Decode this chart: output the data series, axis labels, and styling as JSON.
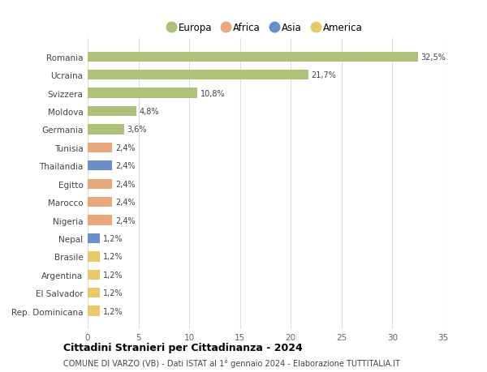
{
  "countries": [
    "Romania",
    "Ucraina",
    "Svizzera",
    "Moldova",
    "Germania",
    "Tunisia",
    "Thailandia",
    "Egitto",
    "Marocco",
    "Nigeria",
    "Nepal",
    "Brasile",
    "Argentina",
    "El Salvador",
    "Rep. Dominicana"
  ],
  "values": [
    32.5,
    21.7,
    10.8,
    4.8,
    3.6,
    2.4,
    2.4,
    2.4,
    2.4,
    2.4,
    1.2,
    1.2,
    1.2,
    1.2,
    1.2
  ],
  "labels": [
    "32,5%",
    "21,7%",
    "10,8%",
    "4,8%",
    "3,6%",
    "2,4%",
    "2,4%",
    "2,4%",
    "2,4%",
    "2,4%",
    "1,2%",
    "1,2%",
    "1,2%",
    "1,2%",
    "1,2%"
  ],
  "colors": [
    "#adc178",
    "#adc178",
    "#adc178",
    "#adc178",
    "#adc178",
    "#e8a87c",
    "#6a8fc8",
    "#e8a87c",
    "#e8a87c",
    "#e8a87c",
    "#6a8fc8",
    "#e8c96a",
    "#e8c96a",
    "#e8c96a",
    "#e8c96a"
  ],
  "legend": [
    {
      "label": "Europa",
      "color": "#adc178"
    },
    {
      "label": "Africa",
      "color": "#e8a87c"
    },
    {
      "label": "Asia",
      "color": "#6a8fc8"
    },
    {
      "label": "America",
      "color": "#e8c96a"
    }
  ],
  "xlim": [
    0,
    35
  ],
  "xticks": [
    0,
    5,
    10,
    15,
    20,
    25,
    30,
    35
  ],
  "title": "Cittadini Stranieri per Cittadinanza - 2024",
  "subtitle": "COMUNE DI VARZO (VB) - Dati ISTAT al 1° gennaio 2024 - Elaborazione TUTTITALIA.IT",
  "background_color": "#ffffff",
  "grid_color": "#dddddd",
  "bar_height": 0.55
}
